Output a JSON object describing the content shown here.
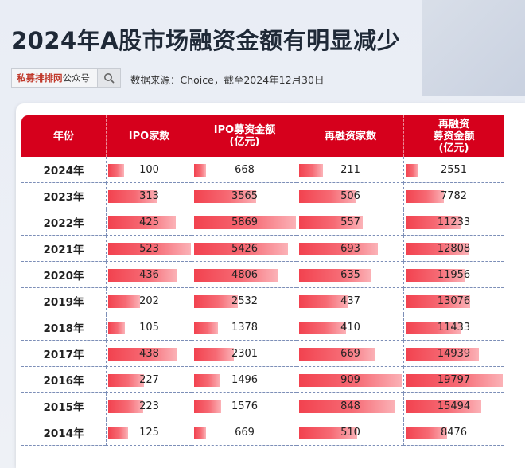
{
  "title": "2024年A股市场融资金额有明显减少",
  "search": {
    "brand": "私募排排网",
    "suffix": "公众号"
  },
  "source": "数据来源：Choice，截至2024年12月30日",
  "colors": {
    "header": "#d6001c",
    "bar": "#f2424f"
  },
  "table": {
    "headers": [
      "年份",
      "IPO家数",
      "IPO募资金额\n(亿元)",
      "再融资家数",
      "再融资\n募资金额\n(亿元)"
    ],
    "rows": [
      [
        "2024年",
        100,
        668,
        211,
        2551
      ],
      [
        "2023年",
        313,
        3565,
        506,
        7782
      ],
      [
        "2022年",
        425,
        5869,
        557,
        11233
      ],
      [
        "2021年",
        523,
        5426,
        693,
        12808
      ],
      [
        "2020年",
        436,
        4806,
        635,
        11956
      ],
      [
        "2019年",
        202,
        2532,
        437,
        13076
      ],
      [
        "2018年",
        105,
        1378,
        410,
        11433
      ],
      [
        "2017年",
        438,
        2301,
        669,
        14939
      ],
      [
        "2016年",
        227,
        1496,
        909,
        19797
      ],
      [
        "2015年",
        223,
        1576,
        848,
        15494
      ],
      [
        "2014年",
        125,
        669,
        510,
        8476
      ]
    ]
  }
}
